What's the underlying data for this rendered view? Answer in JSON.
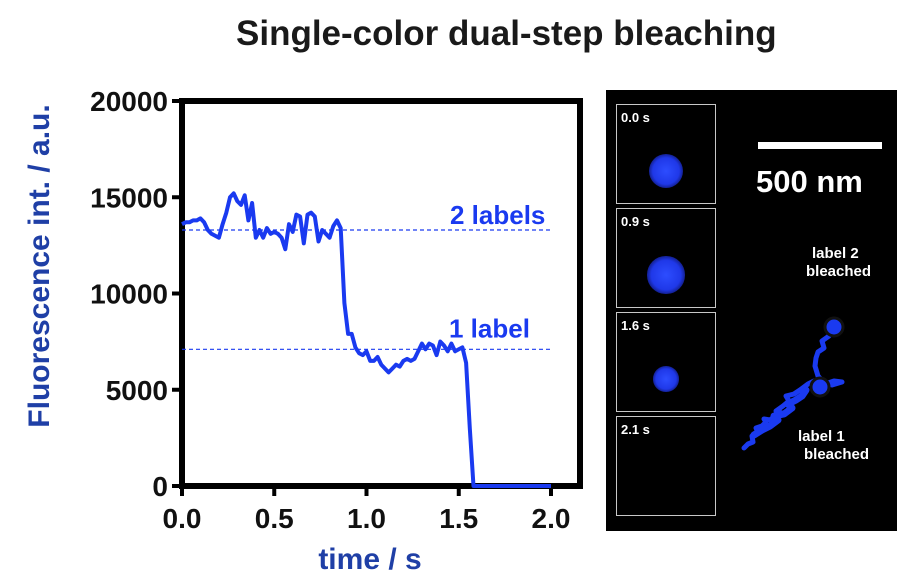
{
  "chart_data": [
    {
      "type": "line",
      "title": "Single-color dual-step bleaching",
      "xlabel": "time / s",
      "ylabel": "Fluorescence int. / a.u.",
      "xlim": [
        0,
        2.0
      ],
      "ylim": [
        0,
        20000
      ],
      "xticks": [
        "0.0",
        "0.5",
        "1.0",
        "1.5",
        "2.0"
      ],
      "yticks": [
        "0",
        "5000",
        "10000",
        "15000",
        "20000"
      ],
      "grid": false,
      "colors": {
        "trace": "#1a3af0",
        "axis_labels": "#1f3fa6"
      },
      "series": [
        {
          "x": [
            0.0,
            0.02,
            0.04,
            0.06,
            0.08,
            0.1,
            0.12,
            0.14,
            0.16,
            0.18,
            0.2,
            0.22,
            0.24,
            0.26,
            0.28,
            0.3,
            0.32,
            0.34,
            0.36,
            0.38,
            0.4,
            0.42,
            0.44,
            0.46,
            0.48,
            0.5,
            0.52,
            0.54,
            0.56,
            0.58,
            0.6,
            0.62,
            0.64,
            0.66,
            0.68,
            0.7,
            0.72,
            0.74,
            0.76,
            0.78,
            0.8,
            0.82,
            0.84,
            0.86,
            0.88,
            0.9,
            0.92,
            0.94,
            0.96,
            0.98,
            1.0,
            1.02,
            1.04,
            1.06,
            1.08,
            1.1,
            1.12,
            1.14,
            1.16,
            1.18,
            1.2,
            1.22,
            1.24,
            1.26,
            1.28,
            1.3,
            1.32,
            1.34,
            1.36,
            1.38,
            1.4,
            1.42,
            1.44,
            1.46,
            1.48,
            1.5,
            1.52,
            1.54,
            1.56,
            1.58,
            1.6,
            1.62,
            1.66,
            1.7,
            1.8,
            1.9,
            2.0
          ],
          "y": [
            13600,
            13700,
            13700,
            13800,
            13800,
            13900,
            13700,
            13300,
            13100,
            13000,
            12900,
            13600,
            14200,
            15000,
            15200,
            14800,
            14600,
            15100,
            13800,
            14700,
            12900,
            13300,
            12900,
            13400,
            13100,
            13200,
            13100,
            12900,
            12300,
            13600,
            13200,
            14100,
            14000,
            12600,
            14100,
            14200,
            14000,
            12700,
            13300,
            13100,
            12900,
            13500,
            13800,
            13400,
            9500,
            7900,
            7900,
            7200,
            6900,
            6800,
            7000,
            6500,
            6500,
            6700,
            6300,
            6100,
            5900,
            6100,
            6300,
            6200,
            6500,
            6600,
            6500,
            6600,
            7000,
            7400,
            7100,
            7400,
            7300,
            6800,
            7500,
            7300,
            7000,
            7400,
            7000,
            7100,
            7200,
            6400,
            3000,
            0,
            0,
            0,
            0,
            0,
            0,
            0,
            0
          ]
        }
      ],
      "annotations": [
        {
          "text": "2 labels",
          "y": 13300
        },
        {
          "text": "1 label",
          "y": 7100
        }
      ]
    }
  ],
  "inset": {
    "frames": [
      {
        "time": "0.0 s",
        "spot_size": 0.35
      },
      {
        "time": "0.9 s",
        "spot_size": 0.38
      },
      {
        "time": "1.6 s",
        "spot_size": 0.26
      },
      {
        "time": "2.1 s",
        "spot_size": 0
      }
    ],
    "scale_bar": "500 nm",
    "label2_note": [
      "label 2",
      "bleached"
    ],
    "label1_note": [
      "label 1",
      "bleached"
    ]
  }
}
